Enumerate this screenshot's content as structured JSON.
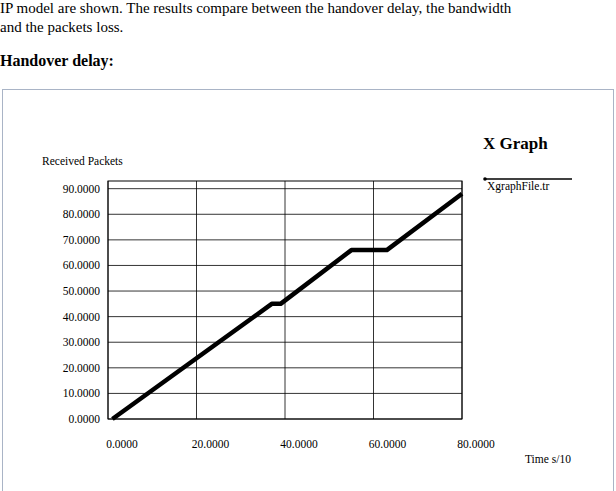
{
  "document": {
    "lines": [
      "IP model are shown. The results compare between the handover delay, the bandwidth",
      "and the packets loss."
    ],
    "heading": "Handover delay:"
  },
  "chart_data": {
    "type": "line",
    "title": "X Graph",
    "y_label": "Received Packets",
    "x_label": "Time s/10",
    "x": [
      1,
      37,
      39,
      55,
      63,
      80
    ],
    "series": [
      {
        "name": "XgraphFile.tr",
        "color": "#000000",
        "values": [
          0,
          45,
          45,
          66,
          66,
          88
        ]
      }
    ],
    "xlim": [
      0,
      80
    ],
    "ylim": [
      0,
      93
    ],
    "xticks": [
      {
        "value": 0,
        "label": "0.0000"
      },
      {
        "value": 20,
        "label": "20.0000"
      },
      {
        "value": 40,
        "label": "40.0000"
      },
      {
        "value": 60,
        "label": "60.0000"
      },
      {
        "value": 80,
        "label": "80.0000"
      }
    ],
    "yticks": [
      {
        "value": 0,
        "label": "0.0000"
      },
      {
        "value": 10,
        "label": "10.0000"
      },
      {
        "value": 20,
        "label": "20.0000"
      },
      {
        "value": 30,
        "label": "30.0000"
      },
      {
        "value": 40,
        "label": "40.0000"
      },
      {
        "value": 50,
        "label": "50.0000"
      },
      {
        "value": 60,
        "label": "60.0000"
      },
      {
        "value": 70,
        "label": "70.0000"
      },
      {
        "value": 80,
        "label": "80.0000"
      },
      {
        "value": 90,
        "label": "90.0000"
      }
    ],
    "grid": true,
    "legend": "top-right"
  }
}
